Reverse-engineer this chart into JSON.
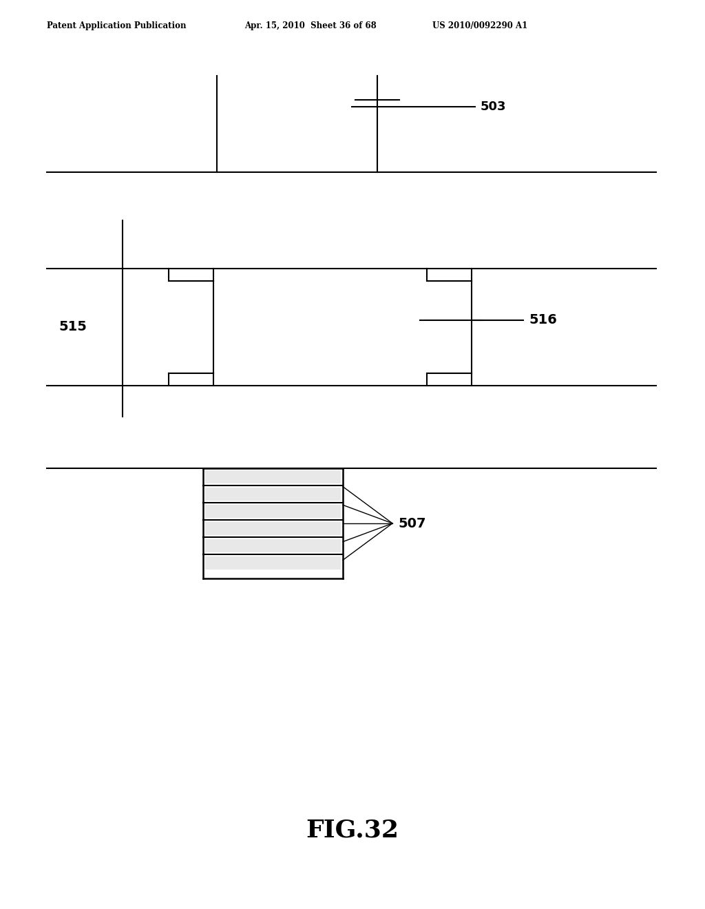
{
  "header_left": "Patent Application Publication",
  "header_mid": "Apr. 15, 2010  Sheet 36 of 68",
  "header_right": "US 2010/0092290 A1",
  "fig_caption": "FIG.32",
  "bg_color": "#ffffff",
  "line_color": "#000000"
}
